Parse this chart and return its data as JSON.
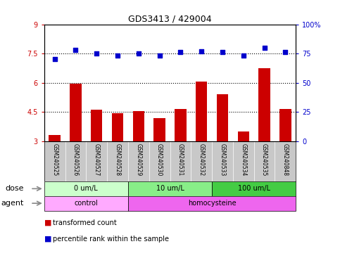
{
  "title": "GDS3413 / 429004",
  "samples": [
    "GSM240525",
    "GSM240526",
    "GSM240527",
    "GSM240528",
    "GSM240529",
    "GSM240530",
    "GSM240531",
    "GSM240532",
    "GSM240533",
    "GSM240534",
    "GSM240535",
    "GSM240848"
  ],
  "red_values": [
    3.3,
    5.95,
    4.6,
    4.45,
    4.55,
    4.2,
    4.65,
    6.05,
    5.4,
    3.5,
    6.75,
    4.65
  ],
  "blue_values": [
    70,
    78,
    75,
    73,
    75,
    73,
    76,
    77,
    76,
    73,
    80,
    76
  ],
  "ylim_left": [
    3,
    9
  ],
  "ylim_right": [
    0,
    100
  ],
  "yticks_left": [
    3,
    4.5,
    6,
    7.5,
    9
  ],
  "ytick_labels_left": [
    "3",
    "4.5",
    "6",
    "7.5",
    "9"
  ],
  "yticks_right": [
    0,
    25,
    50,
    75,
    100
  ],
  "ytick_labels_right": [
    "0",
    "25",
    "50",
    "75",
    "100%"
  ],
  "hlines": [
    4.5,
    6.0,
    7.5
  ],
  "dose_groups": [
    {
      "label": "0 um/L",
      "start": 0,
      "end": 4
    },
    {
      "label": "10 um/L",
      "start": 4,
      "end": 8
    },
    {
      "label": "100 um/L",
      "start": 8,
      "end": 12
    }
  ],
  "agent_groups": [
    {
      "label": "control",
      "start": 0,
      "end": 4
    },
    {
      "label": "homocysteine",
      "start": 4,
      "end": 12
    }
  ],
  "dose_label": "dose",
  "agent_label": "agent",
  "red_color": "#cc0000",
  "blue_color": "#0000cc",
  "bar_width": 0.55,
  "legend_red": "transformed count",
  "legend_blue": "percentile rank within the sample",
  "plot_bg": "#d8d8d8",
  "label_bg": "#c8c8c8",
  "dose_colors": [
    "#ccffcc",
    "#88ee88",
    "#44cc44"
  ],
  "agent_colors": [
    "#ffaaff",
    "#ee66ee"
  ],
  "white": "#ffffff",
  "title_fontsize": 9,
  "tick_fontsize": 7,
  "label_fontsize": 7,
  "dose_agent_fontsize": 7,
  "legend_fontsize": 7
}
